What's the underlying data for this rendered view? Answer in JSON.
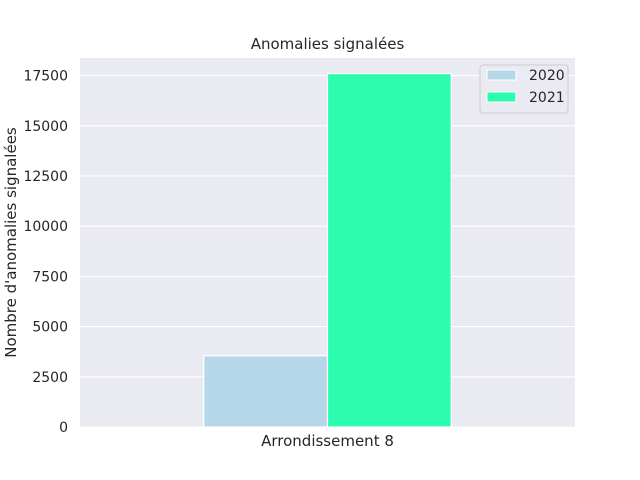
{
  "chart_data": {
    "type": "bar",
    "title": "Anomalies signalées",
    "xlabel": "",
    "ylabel": "Nombre d'anomalies signalées",
    "categories": [
      "Arrondissement 8"
    ],
    "series": [
      {
        "name": "2020",
        "values": [
          3550
        ],
        "color": "#b6d7ea"
      },
      {
        "name": "2021",
        "values": [
          17600
        ],
        "color": "#2bfcad"
      }
    ],
    "ylim": [
      0,
      18375
    ],
    "yticks": [
      0,
      2500,
      5000,
      7500,
      10000,
      12500,
      15000,
      17500
    ],
    "grid": true,
    "legend_position": "top-right",
    "background_color": "#eaeaf2",
    "grid_color": "#ffffff"
  }
}
